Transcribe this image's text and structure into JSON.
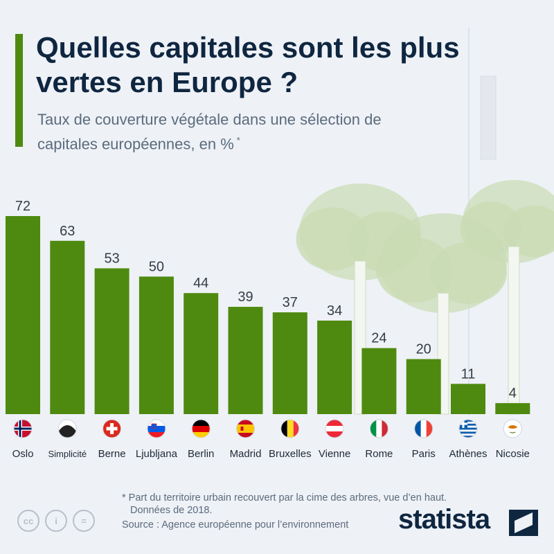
{
  "title": "Quelles capitales sont les plus vertes en Europe ?",
  "subtitle": "Taux de couverture végétale dans une sélection de capitales européennes, en %",
  "subtitle_marker": "*",
  "footnote_line1": "* Part du territoire urbain recouvert par la cime des arbres, vue d’en haut.",
  "footnote_line2": "Données de 2018.",
  "source": "Source : Agence européenne pour l’environnement",
  "brand": "statista",
  "license_icons": [
    "cc-icon",
    "attribution-icon",
    "no-derivatives-icon"
  ],
  "license_labels": [
    "cc",
    "i",
    "="
  ],
  "colors": {
    "bar": "#4e8a10",
    "title": "#0f2640",
    "text": "#5b6b7c",
    "background": "#eef1f6",
    "tree": "#c9dcb4"
  },
  "chart_data": {
    "type": "bar",
    "title": "Quelles capitales sont les plus vertes en Europe ?",
    "subtitle": "Taux de couverture végétale dans une sélection de capitales européennes, en %",
    "categories": [
      "Oslo",
      "Simplicité",
      "Berne",
      "Ljubljana",
      "Berlin",
      "Madrid",
      "Bruxelles",
      "Vienne",
      "Rome",
      "Paris",
      "Athènes",
      "Nicosie"
    ],
    "values": [
      72,
      63,
      53,
      50,
      44,
      39,
      37,
      34,
      24,
      20,
      11,
      4
    ],
    "flags": [
      "norway",
      "simplicite",
      "switzerland",
      "slovenia",
      "germany",
      "spain",
      "belgium",
      "austria",
      "italy",
      "france",
      "greece",
      "cyprus"
    ],
    "ylim": [
      0,
      72
    ],
    "grid": false,
    "legend": "none",
    "data_labels": true
  }
}
